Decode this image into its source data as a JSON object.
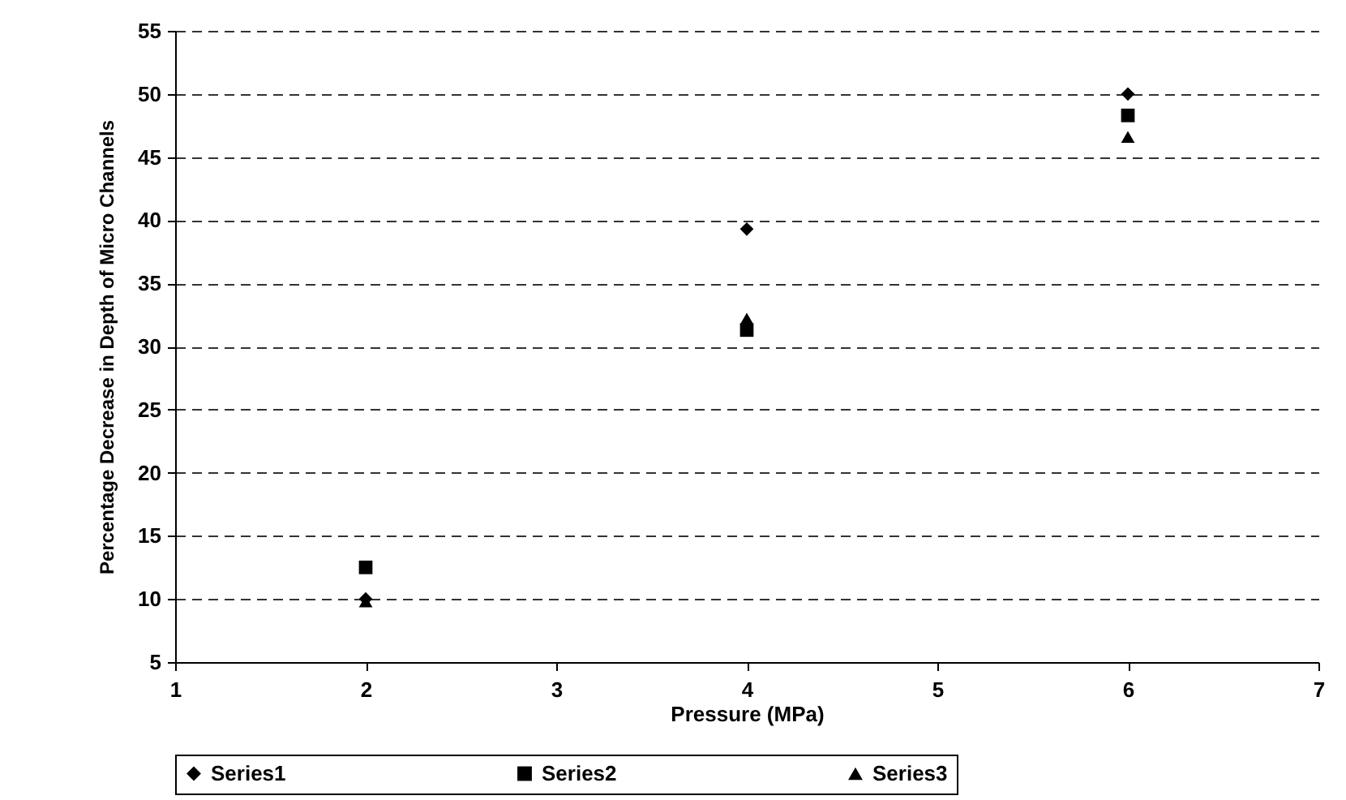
{
  "chart_data": {
    "type": "scatter",
    "xlabel": "Pressure (MPa)",
    "ylabel": "Percentage Decrease in Depth of Micro Channels",
    "xlim": [
      1,
      7
    ],
    "xticks": [
      1,
      2,
      3,
      4,
      5,
      6,
      7
    ],
    "ylim": [
      5,
      55
    ],
    "yticks": [
      5,
      10,
      15,
      20,
      25,
      30,
      35,
      40,
      45,
      50,
      55
    ],
    "grid": "y",
    "legend": "bottom",
    "series": [
      {
        "name": "Series1",
        "color": "#000000",
        "marker": "diamond",
        "x": [
          2,
          4,
          6
        ],
        "values": [
          10,
          39.3,
          50
        ]
      },
      {
        "name": "Series2",
        "color": "#000000",
        "marker": "square",
        "x": [
          2,
          4,
          6
        ],
        "values": [
          12.5,
          31.3,
          48.3
        ]
      },
      {
        "name": "Series3",
        "color": "#000000",
        "marker": "triangle",
        "x": [
          2,
          4,
          6
        ],
        "values": [
          9.8,
          32.2,
          46.6
        ]
      }
    ]
  }
}
